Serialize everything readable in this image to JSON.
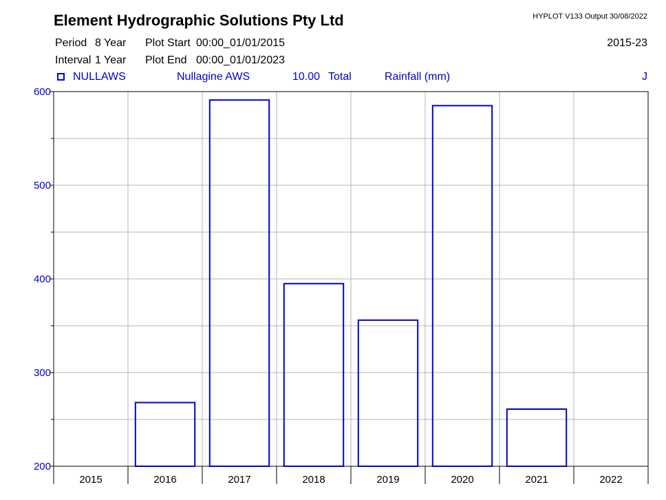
{
  "header": {
    "company": "Element Hydrographic Solutions Pty Ltd",
    "software": "HYPLOT V133  Output 30/08/2022",
    "period_label": "Period",
    "period_value": "8 Year",
    "interval_label": "Interval",
    "interval_value": "1 Year",
    "plot_start_label": "Plot Start",
    "plot_start_value": "00:00_01/01/2015",
    "plot_end_label": "Plot End",
    "plot_end_value": "00:00_01/01/2023",
    "range": "2015-23"
  },
  "legend": {
    "site_code": "NULLAWS",
    "site_name": "Nullagine AWS",
    "variable_code": "10.00",
    "statistic": "Total",
    "variable": "Rainfall (mm)",
    "flag": "J"
  },
  "colors": {
    "series": "#0000cc",
    "grid": "#b4b4b4",
    "axis": "#000000"
  },
  "chart_data": {
    "type": "bar",
    "title": "",
    "xlabel": "",
    "ylabel": "",
    "categories": [
      "2015",
      "2016",
      "2017",
      "2018",
      "2019",
      "2020",
      "2021",
      "2022"
    ],
    "series": [
      {
        "name": "Rainfall (mm)",
        "values": [
          null,
          268,
          591,
          395,
          356,
          585,
          261,
          null
        ]
      }
    ],
    "ylim": [
      200,
      600
    ],
    "yticks": [
      200,
      300,
      400,
      500,
      600
    ],
    "grid": true,
    "bar_style": "outline"
  }
}
